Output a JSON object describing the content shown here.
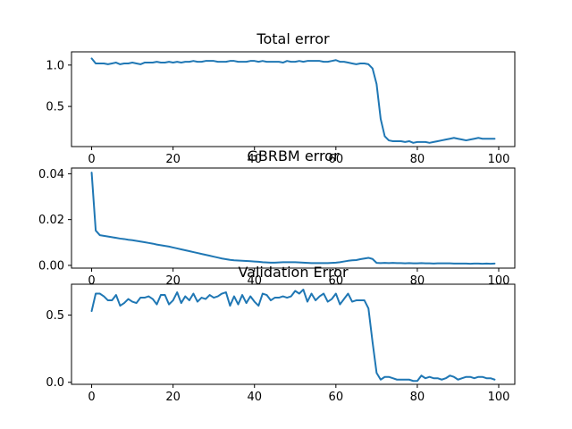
{
  "chart_data": [
    {
      "type": "line",
      "title": "Total error",
      "xlabel": "",
      "ylabel": "",
      "xlim": [
        -4.95,
        103.95
      ],
      "ylim": [
        0.015,
        1.16
      ],
      "xticks": [
        0,
        20,
        40,
        60,
        80,
        100
      ],
      "xtick_labels": [
        "0",
        "20",
        "40",
        "60",
        "80",
        "100"
      ],
      "yticks": [
        0.5,
        1.0
      ],
      "ytick_labels": [
        "0.5",
        "1.0"
      ],
      "grid": false,
      "color": "#1f77b4",
      "x": [
        0,
        1,
        2,
        3,
        4,
        5,
        6,
        7,
        8,
        9,
        10,
        11,
        12,
        13,
        14,
        15,
        16,
        17,
        18,
        19,
        20,
        21,
        22,
        23,
        24,
        25,
        26,
        27,
        28,
        29,
        30,
        31,
        32,
        33,
        34,
        35,
        36,
        37,
        38,
        39,
        40,
        41,
        42,
        43,
        44,
        45,
        46,
        47,
        48,
        49,
        50,
        51,
        52,
        53,
        54,
        55,
        56,
        57,
        58,
        59,
        60,
        61,
        62,
        63,
        64,
        65,
        66,
        67,
        68,
        69,
        70,
        71,
        72,
        73,
        74,
        75,
        76,
        77,
        78,
        79,
        80,
        81,
        82,
        83,
        84,
        85,
        86,
        87,
        88,
        89,
        90,
        91,
        92,
        93,
        94,
        95,
        96,
        97,
        98,
        99
      ],
      "values": [
        1.08,
        1.02,
        1.02,
        1.02,
        1.01,
        1.02,
        1.03,
        1.01,
        1.02,
        1.02,
        1.03,
        1.02,
        1.01,
        1.03,
        1.03,
        1.03,
        1.04,
        1.03,
        1.03,
        1.04,
        1.03,
        1.04,
        1.03,
        1.04,
        1.04,
        1.05,
        1.04,
        1.04,
        1.05,
        1.05,
        1.05,
        1.04,
        1.04,
        1.04,
        1.05,
        1.05,
        1.04,
        1.04,
        1.04,
        1.05,
        1.05,
        1.04,
        1.05,
        1.04,
        1.04,
        1.04,
        1.04,
        1.03,
        1.05,
        1.04,
        1.04,
        1.05,
        1.04,
        1.05,
        1.05,
        1.05,
        1.05,
        1.04,
        1.04,
        1.05,
        1.06,
        1.04,
        1.04,
        1.03,
        1.02,
        1.01,
        1.02,
        1.02,
        1.01,
        0.96,
        0.77,
        0.35,
        0.14,
        0.09,
        0.08,
        0.08,
        0.08,
        0.07,
        0.08,
        0.06,
        0.07,
        0.07,
        0.07,
        0.06,
        0.07,
        0.08,
        0.09,
        0.1,
        0.11,
        0.12,
        0.11,
        0.1,
        0.09,
        0.1,
        0.11,
        0.12,
        0.11,
        0.11,
        0.11,
        0.11
      ]
    },
    {
      "type": "line",
      "title": "GBRBM error",
      "xlabel": "",
      "ylabel": "",
      "xlim": [
        -4.95,
        103.95
      ],
      "ylim": [
        -0.0012,
        0.0425
      ],
      "xticks": [
        0,
        20,
        40,
        60,
        80,
        100
      ],
      "xtick_labels": [
        "0",
        "20",
        "40",
        "60",
        "80",
        "100"
      ],
      "yticks": [
        0.0,
        0.02,
        0.04
      ],
      "ytick_labels": [
        "0.00",
        "0.02",
        "0.04"
      ],
      "grid": false,
      "color": "#1f77b4",
      "x": [
        0,
        1,
        2,
        3,
        4,
        5,
        6,
        7,
        8,
        9,
        10,
        11,
        12,
        13,
        14,
        15,
        16,
        17,
        18,
        19,
        20,
        21,
        22,
        23,
        24,
        25,
        26,
        27,
        28,
        29,
        30,
        31,
        32,
        33,
        34,
        35,
        36,
        37,
        38,
        39,
        40,
        41,
        42,
        43,
        44,
        45,
        46,
        47,
        48,
        49,
        50,
        51,
        52,
        53,
        54,
        55,
        56,
        57,
        58,
        59,
        60,
        61,
        62,
        63,
        64,
        65,
        66,
        67,
        68,
        69,
        70,
        71,
        72,
        73,
        74,
        75,
        76,
        77,
        78,
        79,
        80,
        81,
        82,
        83,
        84,
        85,
        86,
        87,
        88,
        89,
        90,
        91,
        92,
        93,
        94,
        95,
        96,
        97,
        98,
        99
      ],
      "values": [
        0.0405,
        0.0152,
        0.0132,
        0.0129,
        0.0126,
        0.0123,
        0.012,
        0.0117,
        0.0115,
        0.0112,
        0.011,
        0.0107,
        0.0104,
        0.0101,
        0.0098,
        0.0095,
        0.0091,
        0.0088,
        0.0085,
        0.0082,
        0.0078,
        0.0074,
        0.007,
        0.0066,
        0.0062,
        0.0058,
        0.0054,
        0.005,
        0.0046,
        0.0042,
        0.0038,
        0.0034,
        0.003,
        0.0027,
        0.0024,
        0.0022,
        0.0021,
        0.002,
        0.0019,
        0.0018,
        0.0017,
        0.0016,
        0.0014,
        0.0013,
        0.0012,
        0.0012,
        0.0013,
        0.0014,
        0.0014,
        0.0014,
        0.0014,
        0.0013,
        0.0012,
        0.0011,
        0.001,
        0.001,
        0.001,
        0.001,
        0.001,
        0.0011,
        0.0012,
        0.0014,
        0.0017,
        0.002,
        0.0022,
        0.0023,
        0.0027,
        0.003,
        0.0033,
        0.0028,
        0.0011,
        0.001,
        0.0011,
        0.001,
        0.0011,
        0.001,
        0.001,
        0.0009,
        0.001,
        0.0009,
        0.0009,
        0.001,
        0.0009,
        0.0009,
        0.0008,
        0.0009,
        0.0009,
        0.0009,
        0.0009,
        0.0008,
        0.0008,
        0.0008,
        0.0008,
        0.0007,
        0.0008,
        0.0008,
        0.0007,
        0.0008,
        0.0007,
        0.0008
      ]
    },
    {
      "type": "line",
      "title": "Validation Error",
      "xlabel": "",
      "ylabel": "",
      "xlim": [
        -4.95,
        103.95
      ],
      "ylim": [
        -0.015,
        0.73
      ],
      "xticks": [
        0,
        20,
        40,
        60,
        80,
        100
      ],
      "xtick_labels": [
        "0",
        "20",
        "40",
        "60",
        "80",
        "100"
      ],
      "yticks": [
        0.0,
        0.5
      ],
      "ytick_labels": [
        "0.0",
        "0.5"
      ],
      "grid": false,
      "color": "#1f77b4",
      "x": [
        0,
        1,
        2,
        3,
        4,
        5,
        6,
        7,
        8,
        9,
        10,
        11,
        12,
        13,
        14,
        15,
        16,
        17,
        18,
        19,
        20,
        21,
        22,
        23,
        24,
        25,
        26,
        27,
        28,
        29,
        30,
        31,
        32,
        33,
        34,
        35,
        36,
        37,
        38,
        39,
        40,
        41,
        42,
        43,
        44,
        45,
        46,
        47,
        48,
        49,
        50,
        51,
        52,
        53,
        54,
        55,
        56,
        57,
        58,
        59,
        60,
        61,
        62,
        63,
        64,
        65,
        66,
        67,
        68,
        69,
        70,
        71,
        72,
        73,
        74,
        75,
        76,
        77,
        78,
        79,
        80,
        81,
        82,
        83,
        84,
        85,
        86,
        87,
        88,
        89,
        90,
        91,
        92,
        93,
        94,
        95,
        96,
        97,
        98,
        99
      ],
      "values": [
        0.53,
        0.66,
        0.66,
        0.64,
        0.61,
        0.61,
        0.65,
        0.57,
        0.59,
        0.62,
        0.6,
        0.59,
        0.63,
        0.63,
        0.64,
        0.62,
        0.58,
        0.65,
        0.65,
        0.58,
        0.61,
        0.67,
        0.59,
        0.64,
        0.61,
        0.66,
        0.6,
        0.63,
        0.62,
        0.65,
        0.63,
        0.64,
        0.66,
        0.67,
        0.57,
        0.64,
        0.58,
        0.65,
        0.59,
        0.64,
        0.6,
        0.57,
        0.66,
        0.65,
        0.61,
        0.63,
        0.63,
        0.64,
        0.63,
        0.64,
        0.68,
        0.66,
        0.69,
        0.6,
        0.66,
        0.61,
        0.64,
        0.66,
        0.6,
        0.62,
        0.66,
        0.58,
        0.62,
        0.66,
        0.6,
        0.61,
        0.61,
        0.61,
        0.55,
        0.3,
        0.07,
        0.02,
        0.04,
        0.04,
        0.03,
        0.02,
        0.02,
        0.02,
        0.02,
        0.01,
        0.01,
        0.05,
        0.03,
        0.04,
        0.03,
        0.03,
        0.02,
        0.03,
        0.05,
        0.04,
        0.02,
        0.03,
        0.04,
        0.04,
        0.03,
        0.04,
        0.04,
        0.03,
        0.03,
        0.02
      ]
    }
  ]
}
